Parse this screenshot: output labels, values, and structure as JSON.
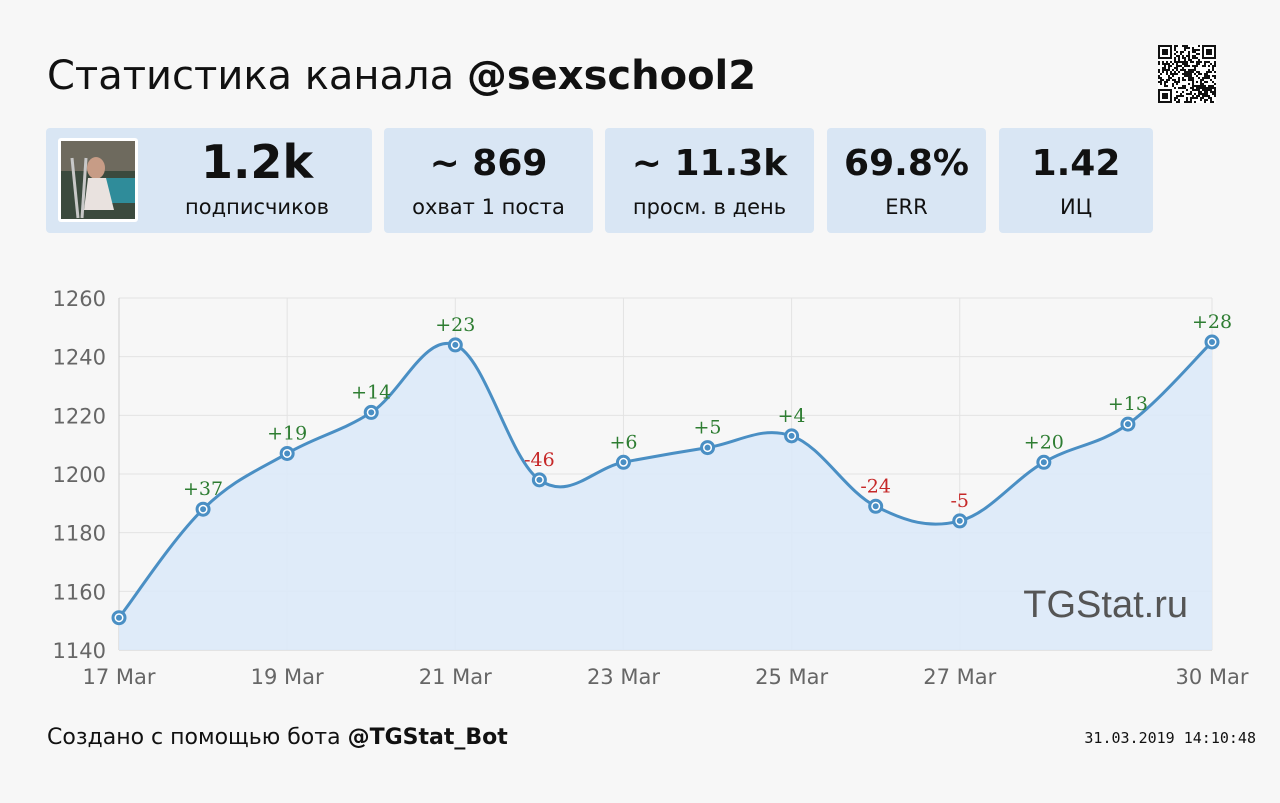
{
  "header": {
    "title_prefix": "Статистика канала",
    "channel": "@sexschool2"
  },
  "stats": [
    {
      "value": "1.2k",
      "label": "подписчиков"
    },
    {
      "value": "~ 869",
      "label": "охват 1 поста"
    },
    {
      "value": "~ 11.3k",
      "label": "просм. в день"
    },
    {
      "value": "69.8%",
      "label": "ERR"
    },
    {
      "value": "1.42",
      "label": "ИЦ"
    }
  ],
  "colors": {
    "line": "#4a8fc4",
    "fill": "#dce9f8",
    "positive": "#2e7d32",
    "negative": "#c62828",
    "card": "#d9e6f4"
  },
  "chart_data": {
    "type": "area",
    "watermark": "TGStat.ru",
    "x": [
      "17 Mar",
      "18 Mar",
      "19 Mar",
      "20 Mar",
      "21 Mar",
      "22 Mar",
      "23 Mar",
      "24 Mar",
      "25 Mar",
      "26 Mar",
      "27 Mar",
      "28 Mar",
      "29 Mar",
      "30 Mar"
    ],
    "x_tick_labels": [
      "17 Mar",
      "19 Mar",
      "21 Mar",
      "23 Mar",
      "25 Mar",
      "27 Mar",
      "30 Mar"
    ],
    "values": [
      1151,
      1188,
      1207,
      1221,
      1244,
      1198,
      1204,
      1209,
      1213,
      1189,
      1184,
      1204,
      1217,
      1245
    ],
    "deltas": [
      "",
      "+37",
      "+19",
      "+14",
      "+23",
      "-46",
      "+6",
      "+5",
      "+4",
      "-24",
      "-5",
      "+20",
      "+13",
      "+28"
    ],
    "yticks": [
      1140,
      1160,
      1180,
      1200,
      1220,
      1240,
      1260
    ],
    "ylim": [
      1140,
      1260
    ],
    "grid": true
  },
  "footer": {
    "prefix": "Создано с помощью бота",
    "bot": "@TGStat_Bot",
    "timestamp": "31.03.2019 14:10:48"
  }
}
